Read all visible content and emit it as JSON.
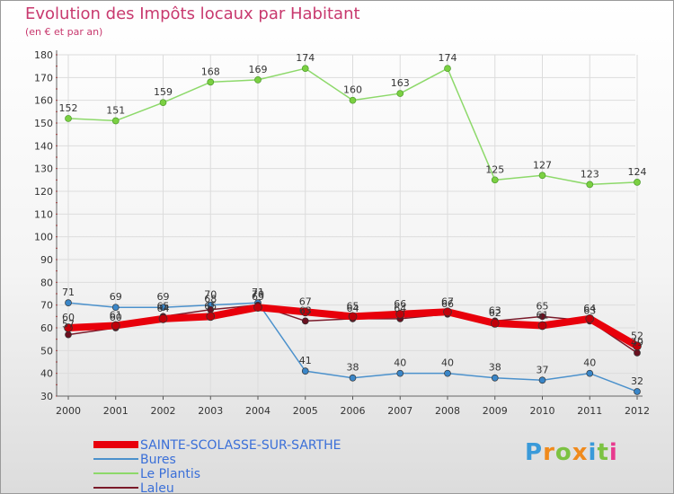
{
  "page": {
    "title": "Evolution des Impôts locaux par Habitant",
    "subtitle": "(en € et par an)"
  },
  "chart_data": {
    "type": "line",
    "title": "Evolution des Impôts locaux par Habitant",
    "subtitle": "(en € et par an)",
    "xlabel": "",
    "ylabel": "",
    "ylim": [
      30,
      180
    ],
    "yticks": [
      30,
      40,
      50,
      60,
      70,
      80,
      90,
      100,
      110,
      120,
      130,
      140,
      150,
      160,
      170,
      180
    ],
    "categories": [
      "2000",
      "2001",
      "2002",
      "2003",
      "2004",
      "2005",
      "2006",
      "2007",
      "2008",
      "2009",
      "2010",
      "2011",
      "2012"
    ],
    "grid": true,
    "legend_position": "bottom-left",
    "series": [
      {
        "name": "SAINTE-SCOLASSE-SUR-SARTHE",
        "color": "#e8000b",
        "values": [
          60,
          61,
          64,
          65,
          69,
          67,
          65,
          66,
          67,
          62,
          61,
          64,
          52
        ],
        "labels": [
          "60",
          "61",
          "64",
          "65",
          "69",
          "67",
          "65",
          "66",
          "67",
          "62",
          "61",
          "64",
          "52"
        ]
      },
      {
        "name": "Bures",
        "color": "#4b91cc",
        "values": [
          71,
          69,
          69,
          70,
          71,
          41,
          38,
          40,
          40,
          38,
          37,
          40,
          32
        ],
        "labels": [
          "71",
          "69",
          "69",
          "70",
          "71",
          "41",
          "38",
          "40",
          "40",
          "38",
          "37",
          "40",
          "32"
        ]
      },
      {
        "name": "Le Plantis",
        "color": "#8dd96a",
        "values": [
          152,
          151,
          159,
          168,
          169,
          174,
          160,
          163,
          174,
          125,
          127,
          123,
          124
        ],
        "labels": [
          "152",
          "151",
          "159",
          "168",
          "169",
          "174",
          "160",
          "163",
          "174",
          "125",
          "127",
          "123",
          "124"
        ]
      },
      {
        "name": "Laleu",
        "color": "#7a1a2a",
        "values": [
          57,
          60,
          65,
          68,
          70,
          63,
          64,
          64,
          66,
          63,
          65,
          63,
          49
        ],
        "labels": [
          "57",
          "60",
          "65",
          "68",
          "70",
          "63",
          "64",
          "64",
          "66",
          "63",
          "65",
          "63",
          "49"
        ]
      }
    ]
  },
  "logo": {
    "letters": [
      "P",
      "r",
      "o",
      "x",
      "i",
      "t",
      "i"
    ],
    "colors": [
      "#3a9ad9",
      "#f08a1c",
      "#7cc242",
      "#f08a1c",
      "#3a9ad9",
      "#7cc242",
      "#e83a8e"
    ]
  }
}
